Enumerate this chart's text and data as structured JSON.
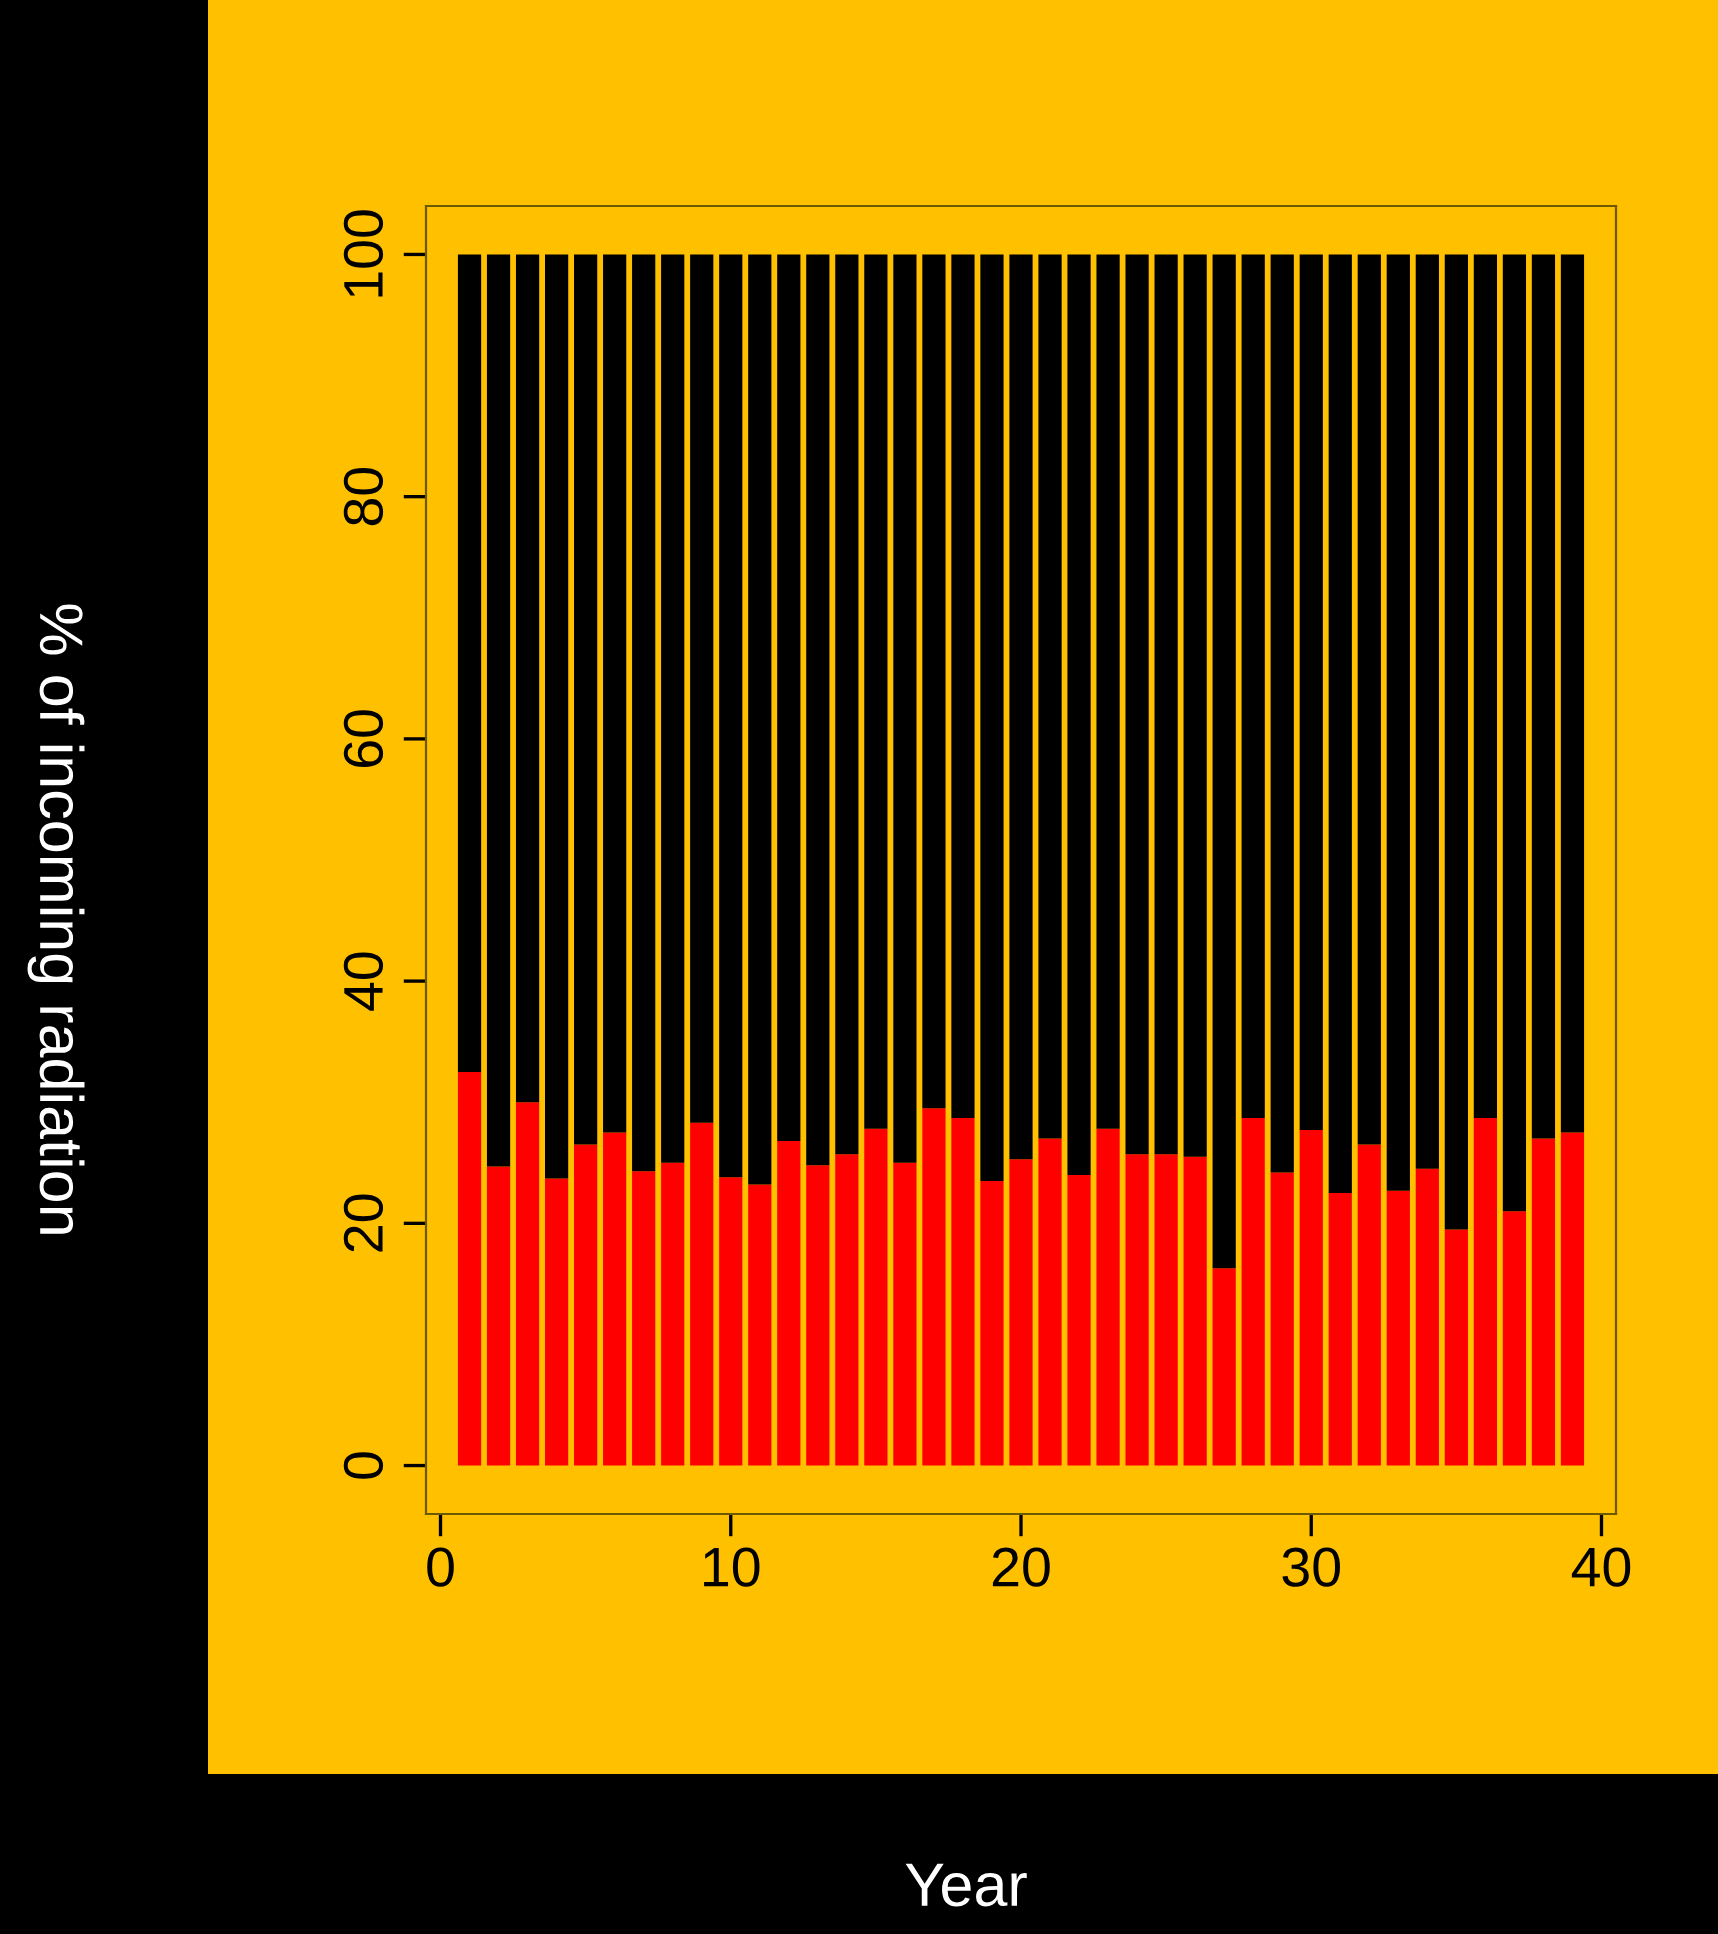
{
  "chart_data": {
    "type": "bar",
    "stacked": true,
    "xlabel": "Year",
    "ylabel": "% of incoming radiation",
    "x": [
      1,
      2,
      3,
      4,
      5,
      6,
      7,
      8,
      9,
      10,
      11,
      12,
      13,
      14,
      15,
      16,
      17,
      18,
      19,
      20,
      21,
      22,
      23,
      24,
      25,
      26,
      27,
      28,
      29,
      30,
      31,
      32,
      33,
      34,
      35,
      36,
      37,
      38,
      39
    ],
    "series": [
      {
        "color": "#ff0000",
        "values": [
          32.5,
          24.7,
          30,
          23.7,
          26.5,
          27.5,
          24.3,
          25,
          28.3,
          23.8,
          23.2,
          26.8,
          24.8,
          25.7,
          27.8,
          25,
          29.5,
          28.7,
          23.5,
          25.3,
          27,
          24,
          27.8,
          25.7,
          25.7,
          25.5,
          16.3,
          28.7,
          24.2,
          27.7,
          22.5,
          26.5,
          22.7,
          24.5,
          19.5,
          28.7,
          21,
          27,
          27.5
        ]
      },
      {
        "color": "#000000",
        "values": [
          67.5,
          75.3,
          70,
          76.3,
          73.5,
          72.5,
          75.7,
          75,
          71.7,
          76.2,
          76.8,
          73.2,
          75.2,
          74.3,
          72.2,
          75,
          70.5,
          71.3,
          76.5,
          74.7,
          73,
          76,
          72.2,
          74.3,
          74.3,
          74.5,
          83.7,
          71.3,
          75.8,
          72.3,
          77.5,
          73.5,
          77.3,
          75.5,
          80.5,
          71.3,
          79,
          73,
          72.5
        ]
      }
    ],
    "xlim": [
      -0.5,
      40.5
    ],
    "xticks": [
      0,
      10,
      20,
      30,
      40
    ],
    "ylim": [
      -4,
      104
    ],
    "yticks": [
      0,
      20,
      40,
      60,
      80,
      100
    ],
    "grid": false
  }
}
